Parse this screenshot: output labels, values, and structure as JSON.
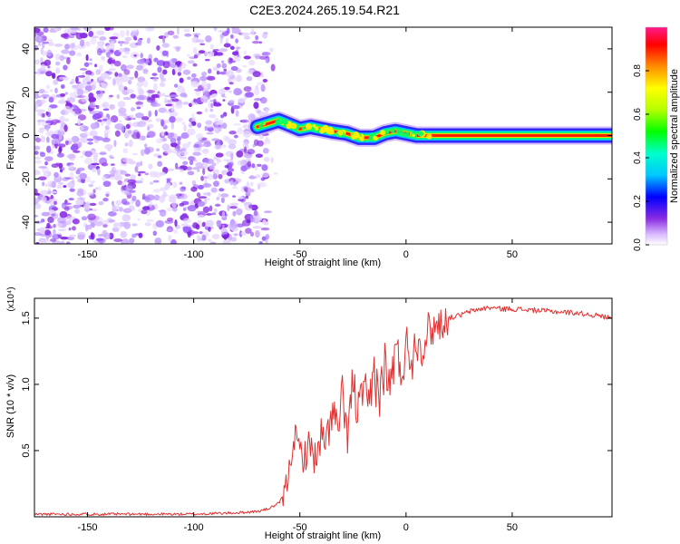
{
  "figure": {
    "title": "C2E3.2024.265.19.54.R21"
  },
  "chart_data": [
    {
      "type": "heatmap",
      "xlabel": "Height of straight line (km)",
      "ylabel": "Frequency (Hz)",
      "xlim": [
        -175,
        97
      ],
      "ylim": [
        -50,
        50
      ],
      "xticks": [
        -150,
        -100,
        -50,
        0,
        50
      ],
      "yticks": [
        -40,
        -20,
        0,
        20,
        40
      ],
      "colorbar": {
        "label": "Normalized spectral amplitude",
        "ticks": [
          "0.0",
          "0.2",
          "0.4",
          "0.6",
          "0.8"
        ],
        "tick_values": [
          0.0,
          0.2,
          0.4,
          0.6,
          0.8
        ],
        "range": [
          0,
          1
        ]
      },
      "noise_region": [
        -175,
        -65
      ],
      "ridge_track": [
        {
          "x": -70,
          "y": 4
        },
        {
          "x": -60,
          "y": 7
        },
        {
          "x": -55,
          "y": 5
        },
        {
          "x": -50,
          "y": 3
        },
        {
          "x": -45,
          "y": 4
        },
        {
          "x": -40,
          "y": 3
        },
        {
          "x": -35,
          "y": 2
        },
        {
          "x": -28,
          "y": 1
        },
        {
          "x": -22,
          "y": -1
        },
        {
          "x": -15,
          "y": -1
        },
        {
          "x": -10,
          "y": 1
        },
        {
          "x": -5,
          "y": 2
        },
        {
          "x": 0,
          "y": 1
        },
        {
          "x": 5,
          "y": 0
        },
        {
          "x": 10,
          "y": 0
        },
        {
          "x": 97,
          "y": 0
        }
      ]
    },
    {
      "type": "line",
      "xlabel": "Height of straight line (km)",
      "ylabel": "SNR (10 * v/v)",
      "yscale_label": "(x10⁴)",
      "xlim": [
        -175,
        97
      ],
      "ylim": [
        0,
        1.65
      ],
      "xticks": [
        -150,
        -100,
        -50,
        0,
        50
      ],
      "yticks": [
        0.5,
        1.0,
        1.5
      ],
      "ytick_labels": [
        "0.5",
        "1.0",
        "1.5"
      ],
      "color": "#e03030",
      "series": [
        {
          "x": [
            -175,
            -150,
            -100,
            -80,
            -70,
            -65,
            -60,
            -57,
            -55,
            -53,
            -50,
            -48,
            -45,
            -42,
            -40,
            -38,
            -35,
            -32,
            -30,
            -28,
            -25,
            -22,
            -20,
            -18,
            -15,
            -12,
            -10,
            -8,
            -5,
            -2,
            0,
            3,
            5,
            8,
            10,
            15,
            20,
            25,
            30,
            35,
            40,
            45,
            50,
            60,
            70,
            80,
            90,
            97
          ],
          "y": [
            0.02,
            0.02,
            0.02,
            0.03,
            0.04,
            0.06,
            0.1,
            0.18,
            0.35,
            0.62,
            0.5,
            0.45,
            0.55,
            0.4,
            0.62,
            0.5,
            0.8,
            0.65,
            0.9,
            0.6,
            1.0,
            0.75,
            1.05,
            0.7,
            1.1,
            0.9,
            1.18,
            0.95,
            1.25,
            1.1,
            1.3,
            1.2,
            1.35,
            1.28,
            1.4,
            1.45,
            1.5,
            1.52,
            1.55,
            1.57,
            1.58,
            1.57,
            1.57,
            1.56,
            1.55,
            1.54,
            1.52,
            1.5
          ]
        }
      ]
    }
  ]
}
